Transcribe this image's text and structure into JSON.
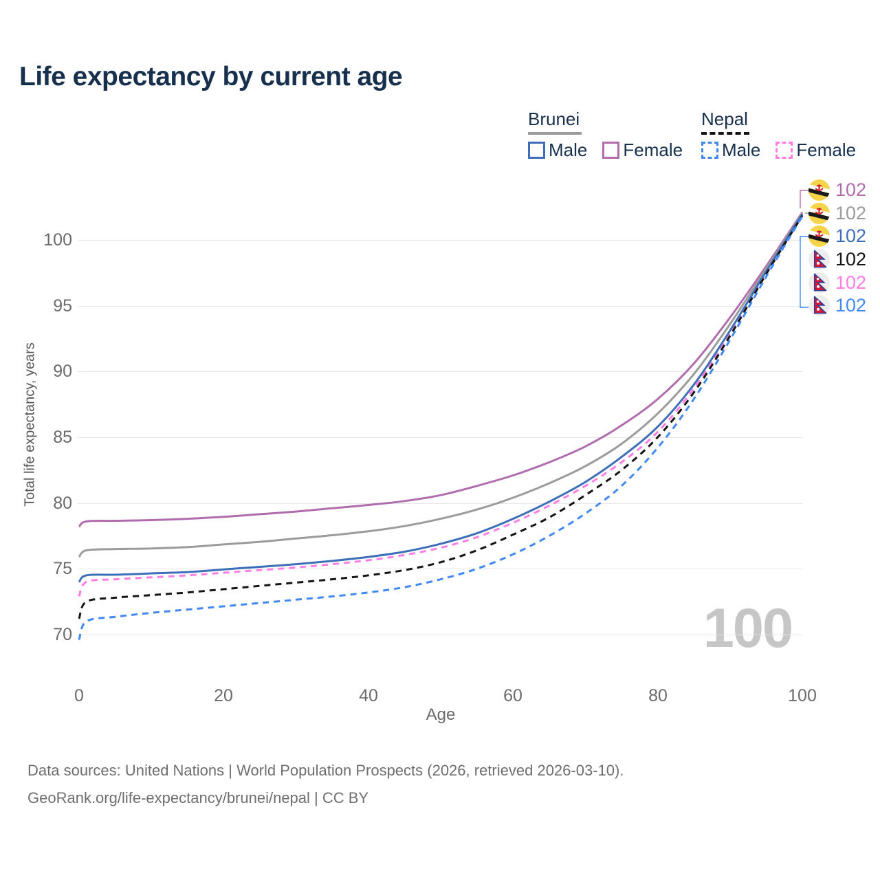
{
  "title": "Life expectancy by current age",
  "legend": {
    "groups": [
      {
        "label": "Brunei",
        "line_style": "solid",
        "line_color": "#9b9b9b",
        "items": [
          {
            "label": "Male",
            "color": "#3d6fb8"
          },
          {
            "label": "Female",
            "color": "#b06cad"
          }
        ]
      },
      {
        "label": "Nepal",
        "line_style": "dashed",
        "line_color": "#141414",
        "items": [
          {
            "label": "Male",
            "color": "#4189f2"
          },
          {
            "label": "Female",
            "color": "#ff7de4"
          }
        ]
      }
    ]
  },
  "chart_data": {
    "type": "line",
    "title": "Life expectancy by current age",
    "xlabel": "Age",
    "ylabel": "Total life expectancy, years",
    "x_ticks": [
      0,
      20,
      40,
      60,
      80,
      100
    ],
    "y_ticks": [
      70,
      75,
      80,
      85,
      90,
      95,
      100
    ],
    "xlim": [
      0,
      100
    ],
    "ylim": [
      69.5,
      103
    ],
    "grid": true,
    "legend_position": "top-right",
    "x": [
      0,
      1,
      5,
      10,
      15,
      20,
      25,
      30,
      35,
      40,
      45,
      50,
      55,
      60,
      65,
      70,
      75,
      80,
      85,
      90,
      95,
      100
    ],
    "series": [
      {
        "id": "brunei-female",
        "name": "Brunei Female",
        "color": "#b06cad",
        "dash": false,
        "end_value": 102,
        "values": [
          78.2,
          78.6,
          78.65,
          78.7,
          78.8,
          78.95,
          79.15,
          79.35,
          79.6,
          79.85,
          80.15,
          80.6,
          81.3,
          82.1,
          83.1,
          84.3,
          85.9,
          87.9,
          90.6,
          94.1,
          98.0,
          102.1
        ]
      },
      {
        "id": "brunei-both",
        "name": "Brunei Both sexes",
        "color": "#9b9b9b",
        "dash": false,
        "end_value": 102,
        "values": [
          75.9,
          76.4,
          76.5,
          76.55,
          76.65,
          76.85,
          77.05,
          77.3,
          77.55,
          77.85,
          78.25,
          78.8,
          79.5,
          80.4,
          81.5,
          82.8,
          84.5,
          86.8,
          89.8,
          93.6,
          97.8,
          102.0
        ]
      },
      {
        "id": "nepal-female",
        "name": "Nepal Female",
        "color": "#ff7de4",
        "dash": true,
        "end_value": 102,
        "values": [
          72.9,
          74.0,
          74.2,
          74.35,
          74.5,
          74.7,
          74.9,
          75.1,
          75.35,
          75.65,
          76.05,
          76.6,
          77.4,
          78.5,
          79.8,
          81.3,
          83.1,
          85.4,
          88.7,
          92.9,
          97.5,
          101.9
        ]
      },
      {
        "id": "brunei-male",
        "name": "Brunei Male",
        "color": "#3d6fb8",
        "dash": false,
        "end_value": 102,
        "values": [
          74.0,
          74.5,
          74.55,
          74.65,
          74.75,
          74.95,
          75.15,
          75.35,
          75.6,
          75.9,
          76.3,
          76.9,
          77.7,
          78.8,
          80.1,
          81.6,
          83.5,
          85.8,
          89.0,
          93.1,
          97.6,
          101.95
        ]
      },
      {
        "id": "nepal-both",
        "name": "Nepal Both sexes",
        "color": "#141414",
        "dash": true,
        "end_value": 102,
        "values": [
          71.2,
          72.5,
          72.8,
          73.0,
          73.2,
          73.45,
          73.7,
          73.95,
          74.2,
          74.5,
          74.9,
          75.5,
          76.4,
          77.6,
          78.9,
          80.6,
          82.5,
          85.0,
          88.4,
          92.7,
          97.4,
          101.85
        ]
      },
      {
        "id": "nepal-male",
        "name": "Nepal Male",
        "color": "#4189f2",
        "dash": true,
        "end_value": 102,
        "values": [
          69.6,
          71.0,
          71.35,
          71.65,
          71.9,
          72.15,
          72.4,
          72.65,
          72.9,
          73.2,
          73.6,
          74.2,
          75.0,
          76.1,
          77.5,
          79.2,
          81.3,
          84.2,
          87.9,
          92.4,
          97.2,
          101.8
        ]
      }
    ]
  },
  "end_labels": [
    {
      "flag": "brunei",
      "value": "102",
      "color": "#b06cad"
    },
    {
      "flag": "brunei",
      "value": "102",
      "color": "#9b9b9b"
    },
    {
      "flag": "brunei",
      "value": "102",
      "color": "#3d6fb8"
    },
    {
      "flag": "nepal",
      "value": "102",
      "color": "#141414"
    },
    {
      "flag": "nepal",
      "value": "102",
      "color": "#ff7de4"
    },
    {
      "flag": "nepal",
      "value": "102",
      "color": "#4189f2"
    }
  ],
  "watermark": "100",
  "footer": {
    "line1": "Data sources: United Nations | World Population Prospects (2026, retrieved 2026-03-10).",
    "line2": "GeoRank.org/life-expectancy/brunei/nepal | CC BY"
  }
}
